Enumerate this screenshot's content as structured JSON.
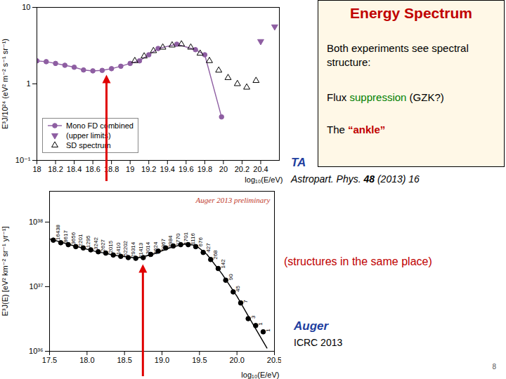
{
  "chart_data": [
    {
      "type": "scatter",
      "x_label": "log₁₀(E/eV)",
      "y_label": "E³J/10²⁴ (eV² m⁻² s⁻¹ sr⁻¹)",
      "log": "y",
      "xlim": [
        18,
        20.6
      ],
      "xticks": [
        18,
        18.2,
        18.4,
        18.6,
        18.8,
        19,
        19.2,
        19.4,
        19.6,
        19.8,
        20,
        20.2,
        20.4
      ],
      "ylim": [
        0.1,
        10
      ],
      "yticks": [
        {
          "value": 0.1,
          "label": "10⁻¹"
        },
        1,
        10
      ],
      "legend": "bottom-left",
      "arrow": {
        "x": 18.75,
        "y": 1.3,
        "color": "#e00000"
      },
      "series": [
        {
          "name": "Mono FD combined",
          "color": "#8e5ea2",
          "marker": "circle",
          "line_style": "solid",
          "x": [
            18.0,
            18.1,
            18.2,
            18.3,
            18.4,
            18.5,
            18.6,
            18.7,
            18.8,
            18.9,
            19.0,
            19.1,
            19.2,
            19.3,
            19.5,
            19.7,
            19.8,
            19.98
          ],
          "values": [
            2.0,
            1.95,
            1.85,
            1.75,
            1.65,
            1.52,
            1.48,
            1.5,
            1.58,
            1.7,
            1.85,
            2.0,
            2.4,
            2.9,
            3.3,
            2.8,
            2.4,
            0.37
          ]
        },
        {
          "name": "(upper limits)",
          "color": "#8e5ea2",
          "marker": "triangle-down",
          "x": [
            20.4,
            20.55
          ],
          "values": [
            3.6,
            5.6
          ]
        },
        {
          "name": "SD spectrum",
          "color": "#000000",
          "marker": "triangle-open",
          "x": [
            19.05,
            19.15,
            19.25,
            19.35,
            19.45,
            19.55,
            19.65,
            19.75,
            19.85,
            19.95,
            20.05,
            20.15,
            20.25,
            20.35
          ],
          "values": [
            2.0,
            2.3,
            2.7,
            3.0,
            3.2,
            3.3,
            3.0,
            2.5,
            2.0,
            1.5,
            1.2,
            1.0,
            0.9,
            1.1
          ]
        }
      ]
    },
    {
      "type": "scatter",
      "x_label": "log₁₀(E/eV)",
      "y_label": "E³J(E) [eV² km⁻² sr⁻¹ yr⁻¹]",
      "log": "y",
      "xlim": [
        17.5,
        20.5
      ],
      "xticks": [
        17.5,
        {
          "value": 18,
          "label": "18.0"
        },
        18.5,
        {
          "value": 19,
          "label": "19.0"
        },
        19.5,
        {
          "value": 20,
          "label": "20.0"
        },
        20.5
      ],
      "ylim": [
        1e+36,
        3e+38
      ],
      "yticks": [
        {
          "value": 1e+36,
          "label": "10³⁶"
        },
        {
          "value": 1e+37,
          "label": "10³⁷"
        },
        {
          "value": 1e+38,
          "label": "10³⁸"
        }
      ],
      "annotation": {
        "text": "Auger 2013 preliminary",
        "color": "#c0392b"
      },
      "arrow": {
        "x": 18.75,
        "y": 2.2e+37,
        "color": "#e00000"
      },
      "series": [
        {
          "color": "#000000",
          "marker": "circle",
          "x": [
            17.55,
            17.65,
            17.75,
            17.85,
            17.95,
            18.05,
            18.15,
            18.25,
            18.35,
            18.45,
            18.55,
            18.65,
            18.75,
            18.85,
            18.95,
            19.05,
            19.15,
            19.25,
            19.35,
            19.45,
            19.55,
            19.65,
            19.75,
            19.85,
            19.95,
            20.05,
            20.15,
            20.25,
            20.35
          ],
          "values": [
            5.25e+37,
            4.79e+37,
            4.47e+37,
            4.17e+37,
            3.98e+37,
            3.72e+37,
            3.47e+37,
            3.31e+37,
            3.09e+37,
            2.95e+37,
            2.82e+37,
            2.75e+37,
            2.82e+37,
            3.16e+37,
            3.55e+37,
            3.98e+37,
            4.27e+37,
            4.47e+37,
            4.47e+37,
            4.17e+37,
            3.39e+37,
            2.63e+37,
            1.91e+37,
            1.26e+37,
            8.3e+36,
            5.6e+36,
            3.2e+36,
            2.5e+36,
            2e+36
          ],
          "counts": [
            16438,
            8617,
            3656,
            2201,
            1295,
            3242,
            2627,
            2015,
            1410,
            52202,
            29314,
            21413,
            13014,
            8624,
            5867,
            3984,
            2770,
            1701,
            1116,
            676,
            427,
            268,
            142,
            90,
            45,
            7,
            3,
            1,
            1
          ]
        },
        {
          "color": "#000000",
          "type": "line",
          "line_style": "solid",
          "x": [
            17.5,
            17.8,
            18.1,
            18.4,
            18.6,
            18.7,
            18.9,
            19.1,
            19.3,
            19.45,
            19.6,
            19.8,
            20.0,
            20.2,
            20.4
          ],
          "values": [
            5.5e+37,
            4.37e+37,
            3.55e+37,
            3.02e+37,
            2.82e+37,
            2.82e+37,
            3.24e+37,
            3.98e+37,
            4.57e+37,
            4.37e+37,
            3.16e+37,
            1.58e+37,
            7.1e+36,
            2.8e+36,
            1.12e+36
          ]
        }
      ]
    }
  ],
  "slide": {
    "box": {
      "title": {
        "text": "Energy Spectrum",
        "color": "#c00000"
      },
      "lines": [
        [
          {
            "text": "Both experiments see spectral structure:"
          }
        ],
        [
          {
            "text": "Flux "
          },
          {
            "text": "suppression",
            "color": "#008000"
          },
          {
            "text": " (GZK?)"
          }
        ],
        [
          {
            "text": "The "
          },
          {
            "text": "“ankle”",
            "color": "#c00000",
            "bold": true
          }
        ]
      ]
    },
    "ta_note": [
      {
        "text": "TA",
        "color": "#1f3fa0",
        "bold": true,
        "italic": true
      }
    ],
    "ta_reference": [
      {
        "text": "Astropart. Phys. ",
        "italic": true
      },
      {
        "text": "48",
        "bold": true,
        "italic": true
      },
      {
        "text": " (2013) 16",
        "italic": true
      }
    ],
    "comparison_note": [
      {
        "text": "(structures in the same place)",
        "color": "#c00000"
      }
    ],
    "auger_note": [
      {
        "text": "Auger",
        "color": "#1f3fa0",
        "bold": true,
        "italic": true
      }
    ],
    "auger_reference": [
      {
        "text": "ICRC 2013"
      }
    ],
    "page_number": 8
  }
}
